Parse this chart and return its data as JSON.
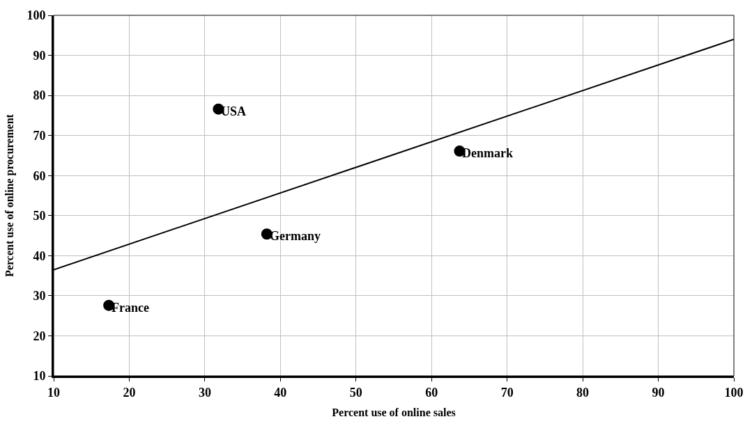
{
  "chart_data": {
    "type": "scatter",
    "xlabel": "Percent use of online sales",
    "ylabel": "Percent use of online procurement",
    "xlim": [
      10,
      100
    ],
    "xticks": [
      10,
      20,
      30,
      40,
      50,
      60,
      70,
      80,
      90,
      100
    ],
    "ylim": [
      10,
      100
    ],
    "yticks": [
      10,
      20,
      30,
      40,
      50,
      60,
      70,
      80,
      90,
      100
    ],
    "grid": true,
    "marker": "circle",
    "series": [
      {
        "color": "#000000",
        "x": [
          31.8,
          63.7,
          38.2,
          17.3
        ],
        "values": [
          76.6,
          66.1,
          45.4,
          27.6
        ]
      },
      {
        "type": "line",
        "color": "#000000",
        "x": [
          10,
          100
        ],
        "values": [
          36.5,
          94
        ],
        "line_style": "solid",
        "marker": "none"
      }
    ],
    "annotations": [
      {
        "text": "USA",
        "x": 31.8,
        "y": 76.6
      },
      {
        "text": "Denmark",
        "x": 63.7,
        "y": 66.1
      },
      {
        "text": "Germany",
        "x": 38.2,
        "y": 45.4
      },
      {
        "text": "France",
        "x": 17.3,
        "y": 27.6
      }
    ]
  }
}
